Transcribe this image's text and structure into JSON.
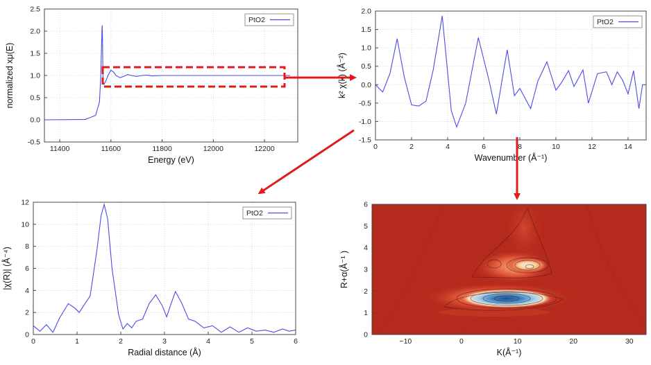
{
  "chart_data": [
    {
      "id": "xanes",
      "type": "line",
      "xlabel": "Energy    (eV)",
      "ylabel": "normalized xμ(E)",
      "xlim": [
        11340,
        12330
      ],
      "ylim": [
        -0.5,
        2.5
      ],
      "xticks": [
        11400,
        11600,
        11800,
        12000,
        12200
      ],
      "yticks": [
        -0.5,
        0,
        0.5,
        1,
        1.5,
        2,
        2.5
      ],
      "grid": true,
      "legend": "top-right",
      "series": [
        {
          "name": "PtO2",
          "x": [
            11340,
            11500,
            11540,
            11555,
            11560,
            11563,
            11565,
            11566,
            11567,
            11568,
            11569,
            11570,
            11573,
            11580,
            11590,
            11600,
            11610,
            11620,
            11635,
            11650,
            11665,
            11680,
            11700,
            11720,
            11740,
            11760,
            11800,
            11850,
            11900,
            11950,
            12000,
            12050,
            12100,
            12150,
            12200,
            12250,
            12300
          ],
          "y": [
            0,
            0.01,
            0.1,
            0.4,
            0.95,
            1.6,
            2.05,
            2.13,
            1.8,
            1.3,
            0.98,
            0.85,
            0.8,
            0.88,
            1.02,
            1.12,
            1.08,
            1.0,
            0.95,
            0.98,
            1.02,
            1.0,
            0.98,
            1.0,
            1.01,
            0.99,
            1.0,
            1.0,
            1.0,
            1.0,
            1.0,
            1.0,
            1.0,
            1.0,
            1.0,
            1.0,
            1.0
          ]
        }
      ]
    },
    {
      "id": "kspace",
      "type": "line",
      "xlabel": "Wavenumber    (Å⁻¹)",
      "ylabel": "k² χ(k)   (Å⁻²)",
      "xlim": [
        0,
        15
      ],
      "ylim": [
        -1.5,
        2
      ],
      "xticks": [
        0,
        2,
        4,
        6,
        8,
        10,
        12,
        14
      ],
      "yticks": [
        -1.5,
        -1,
        -0.5,
        0,
        0.5,
        1,
        1.5,
        2
      ],
      "grid": true,
      "legend": "top-right",
      "series": [
        {
          "name": "PtO2",
          "x": [
            0,
            0.4,
            0.8,
            1.2,
            1.6,
            2.0,
            2.4,
            2.8,
            3.2,
            3.7,
            4.2,
            4.5,
            5.0,
            5.7,
            6.3,
            6.7,
            7.3,
            7.7,
            8.0,
            8.6,
            9.0,
            9.5,
            10.0,
            10.3,
            10.7,
            11.0,
            11.5,
            11.8,
            12.3,
            12.8,
            13.1,
            13.4,
            13.7,
            14.0,
            14.3,
            14.6,
            14.8,
            15.0
          ],
          "y": [
            0,
            -0.2,
            0.3,
            1.25,
            0.2,
            -0.55,
            -0.58,
            -0.45,
            0.4,
            1.87,
            -0.7,
            -1.15,
            -0.5,
            1.28,
            0.1,
            -0.8,
            0.95,
            -0.3,
            -0.1,
            -0.65,
            0.1,
            0.62,
            -0.15,
            0.05,
            0.38,
            -0.05,
            0.4,
            -0.5,
            0.3,
            0.35,
            0.0,
            0.35,
            0.12,
            -0.25,
            0.38,
            -0.65,
            0.0,
            0.0
          ]
        }
      ]
    },
    {
      "id": "rspace",
      "type": "line",
      "xlabel": "Radial distance     (Å)",
      "ylabel": "|χ(R)|    (Å⁻⁴)",
      "xlim": [
        0,
        6
      ],
      "ylim": [
        0,
        12
      ],
      "xticks": [
        0,
        1,
        2,
        3,
        4,
        5,
        6
      ],
      "yticks": [
        0,
        2,
        4,
        6,
        8,
        10,
        12
      ],
      "grid": true,
      "legend": "top-right",
      "series": [
        {
          "name": "PtO2",
          "x": [
            0,
            0.15,
            0.3,
            0.45,
            0.6,
            0.8,
            0.95,
            1.05,
            1.15,
            1.3,
            1.45,
            1.55,
            1.62,
            1.7,
            1.8,
            1.95,
            2.05,
            2.15,
            2.25,
            2.35,
            2.5,
            2.65,
            2.8,
            2.95,
            3.05,
            3.15,
            3.25,
            3.4,
            3.55,
            3.7,
            3.9,
            4.1,
            4.3,
            4.5,
            4.7,
            4.9,
            5.1,
            5.3,
            5.5,
            5.7,
            5.85,
            6.0
          ],
          "y": [
            0.8,
            0.3,
            0.9,
            0.2,
            1.5,
            2.8,
            2.4,
            2.0,
            2.6,
            3.5,
            7.5,
            10.8,
            11.8,
            10.5,
            6.0,
            1.8,
            0.5,
            1.0,
            0.6,
            1.2,
            1.4,
            2.8,
            3.6,
            2.6,
            1.6,
            2.8,
            3.9,
            2.8,
            1.4,
            1.2,
            0.6,
            0.8,
            0.2,
            0.7,
            0.2,
            0.6,
            0.3,
            0.4,
            0.2,
            0.5,
            0.3,
            0.4
          ]
        }
      ]
    },
    {
      "id": "wavelet",
      "type": "heatmap",
      "xlabel": "K(Å⁻¹)",
      "ylabel": "R+α(Å⁻¹ )",
      "xlim": [
        -16,
        33
      ],
      "ylim": [
        0,
        6
      ],
      "xticks": [
        -10,
        0,
        10,
        20,
        30
      ],
      "xtick_labels": [
        "−10",
        "0",
        "10",
        "20",
        "30"
      ],
      "yticks": [
        0,
        1,
        2,
        3,
        4,
        5,
        6
      ],
      "grid": false,
      "features": [
        {
          "kind": "minimum",
          "k": 7,
          "r": 1.6,
          "color": "#2a6fb0"
        },
        {
          "kind": "maximum",
          "k": 12,
          "r": 3.0,
          "color": "#fff4d8"
        }
      ]
    }
  ]
}
